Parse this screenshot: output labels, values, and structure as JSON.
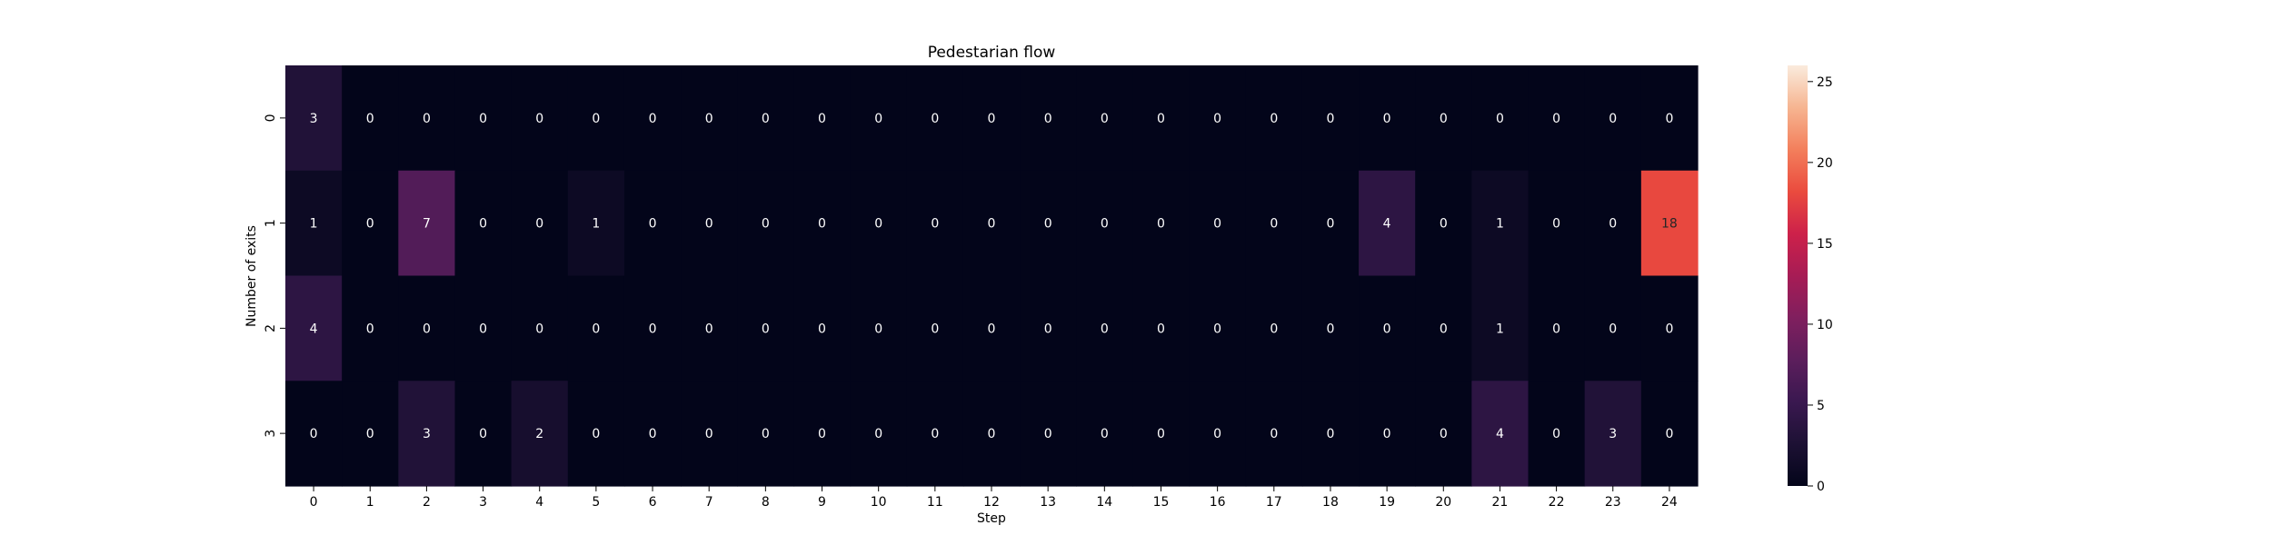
{
  "chart_data": {
    "type": "heatmap",
    "title": "Pedestarian flow",
    "xlabel": "Step",
    "ylabel": "Number of exits",
    "x_categories": [
      "0",
      "1",
      "2",
      "3",
      "4",
      "5",
      "6",
      "7",
      "8",
      "9",
      "10",
      "11",
      "12",
      "13",
      "14",
      "15",
      "16",
      "17",
      "18",
      "19",
      "20",
      "21",
      "22",
      "23",
      "24"
    ],
    "y_categories": [
      "0",
      "1",
      "2",
      "3"
    ],
    "values": [
      [
        3,
        0,
        0,
        0,
        0,
        0,
        0,
        0,
        0,
        0,
        0,
        0,
        0,
        0,
        0,
        0,
        0,
        0,
        0,
        0,
        0,
        0,
        0,
        0,
        0
      ],
      [
        1,
        0,
        7,
        0,
        0,
        1,
        0,
        0,
        0,
        0,
        0,
        0,
        0,
        0,
        0,
        0,
        0,
        0,
        0,
        4,
        0,
        1,
        0,
        0,
        18
      ],
      [
        4,
        0,
        0,
        0,
        0,
        0,
        0,
        0,
        0,
        0,
        0,
        0,
        0,
        0,
        0,
        0,
        0,
        0,
        0,
        0,
        0,
        1,
        0,
        0,
        0
      ],
      [
        0,
        0,
        3,
        0,
        2,
        0,
        0,
        0,
        0,
        0,
        0,
        0,
        0,
        0,
        0,
        0,
        0,
        0,
        0,
        0,
        0,
        4,
        0,
        3,
        0
      ]
    ],
    "annotations": true,
    "colormap": "rocket",
    "colorbar": {
      "range": [
        0,
        26
      ],
      "ticks": [
        "0",
        "5",
        "10",
        "15",
        "20",
        "25"
      ]
    },
    "grid": false,
    "legend": "right"
  }
}
